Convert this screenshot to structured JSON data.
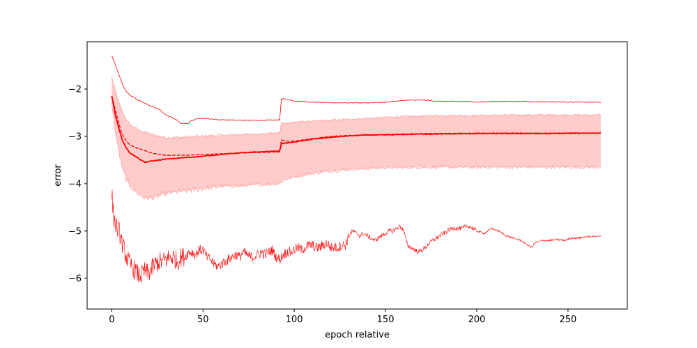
{
  "chart_data": {
    "type": "line",
    "title": "",
    "xlabel": "epoch relative",
    "ylabel": "error",
    "xlim": [
      -13.5,
      282.5
    ],
    "ylim": [
      -6.65,
      -1.0
    ],
    "xticks": [
      0,
      50,
      100,
      150,
      200,
      250
    ],
    "yticks": [
      -2,
      -3,
      -4,
      -5,
      -6
    ],
    "grid": false,
    "legend": "none",
    "colors": {
      "line": "#ff0000",
      "band_fill": "#ffcccc",
      "band_edge": "#ffaaaa"
    },
    "series": [
      {
        "role": "max",
        "style": "thin",
        "points": [
          [
            0,
            -1.3
          ],
          [
            2,
            -1.5
          ],
          [
            4,
            -1.7
          ],
          [
            6,
            -1.92
          ],
          [
            8,
            -2.05
          ],
          [
            10,
            -2.13
          ],
          [
            14,
            -2.22
          ],
          [
            18,
            -2.3
          ],
          [
            22,
            -2.37
          ],
          [
            26,
            -2.43
          ],
          [
            30,
            -2.55
          ],
          [
            34,
            -2.62
          ],
          [
            38,
            -2.72
          ],
          [
            40,
            -2.73
          ],
          [
            42,
            -2.72
          ],
          [
            44,
            -2.66
          ],
          [
            48,
            -2.62
          ],
          [
            52,
            -2.62
          ],
          [
            56,
            -2.64
          ],
          [
            60,
            -2.65
          ],
          [
            70,
            -2.66
          ],
          [
            80,
            -2.66
          ],
          [
            92,
            -2.65
          ],
          [
            93,
            -2.2
          ],
          [
            96,
            -2.22
          ],
          [
            100,
            -2.25
          ],
          [
            110,
            -2.28
          ],
          [
            120,
            -2.29
          ],
          [
            130,
            -2.29
          ],
          [
            140,
            -2.29
          ],
          [
            150,
            -2.28
          ],
          [
            160,
            -2.24
          ],
          [
            170,
            -2.23
          ],
          [
            180,
            -2.26
          ],
          [
            200,
            -2.27
          ],
          [
            220,
            -2.26
          ],
          [
            240,
            -2.27
          ],
          [
            268,
            -2.28
          ]
        ]
      },
      {
        "role": "band_upper",
        "points": [
          [
            0,
            -1.75
          ],
          [
            2,
            -2.05
          ],
          [
            4,
            -2.3
          ],
          [
            6,
            -2.5
          ],
          [
            8,
            -2.65
          ],
          [
            10,
            -2.75
          ],
          [
            14,
            -2.85
          ],
          [
            18,
            -2.92
          ],
          [
            22,
            -2.96
          ],
          [
            26,
            -3.0
          ],
          [
            30,
            -3.03
          ],
          [
            40,
            -3.02
          ],
          [
            50,
            -3.0
          ],
          [
            60,
            -2.98
          ],
          [
            70,
            -2.96
          ],
          [
            80,
            -2.95
          ],
          [
            92,
            -2.93
          ],
          [
            93,
            -2.72
          ],
          [
            96,
            -2.72
          ],
          [
            100,
            -2.7
          ],
          [
            110,
            -2.68
          ],
          [
            120,
            -2.66
          ],
          [
            130,
            -2.64
          ],
          [
            140,
            -2.62
          ],
          [
            150,
            -2.6
          ],
          [
            160,
            -2.58
          ],
          [
            170,
            -2.57
          ],
          [
            180,
            -2.56
          ],
          [
            200,
            -2.56
          ],
          [
            220,
            -2.55
          ],
          [
            240,
            -2.55
          ],
          [
            268,
            -2.55
          ]
        ]
      },
      {
        "role": "band_lower",
        "points": [
          [
            0,
            -2.3
          ],
          [
            2,
            -2.9
          ],
          [
            4,
            -3.35
          ],
          [
            6,
            -3.7
          ],
          [
            8,
            -3.9
          ],
          [
            10,
            -4.05
          ],
          [
            14,
            -4.2
          ],
          [
            18,
            -4.3
          ],
          [
            22,
            -4.3
          ],
          [
            26,
            -4.25
          ],
          [
            30,
            -4.2
          ],
          [
            40,
            -4.15
          ],
          [
            50,
            -4.1
          ],
          [
            60,
            -4.05
          ],
          [
            70,
            -4.05
          ],
          [
            80,
            -4.02
          ],
          [
            92,
            -4.0
          ],
          [
            93,
            -3.95
          ],
          [
            96,
            -3.9
          ],
          [
            100,
            -3.85
          ],
          [
            110,
            -3.78
          ],
          [
            120,
            -3.73
          ],
          [
            130,
            -3.7
          ],
          [
            140,
            -3.68
          ],
          [
            150,
            -3.66
          ],
          [
            160,
            -3.66
          ],
          [
            170,
            -3.65
          ],
          [
            180,
            -3.65
          ],
          [
            200,
            -3.65
          ],
          [
            220,
            -3.65
          ],
          [
            240,
            -3.65
          ],
          [
            268,
            -3.65
          ]
        ]
      },
      {
        "role": "median",
        "style": "dashed",
        "points": [
          [
            0,
            -2.15
          ],
          [
            2,
            -2.45
          ],
          [
            4,
            -2.75
          ],
          [
            6,
            -2.98
          ],
          [
            8,
            -3.1
          ],
          [
            10,
            -3.18
          ],
          [
            14,
            -3.25
          ],
          [
            18,
            -3.3
          ],
          [
            22,
            -3.35
          ],
          [
            26,
            -3.38
          ],
          [
            30,
            -3.4
          ],
          [
            40,
            -3.4
          ],
          [
            50,
            -3.38
          ],
          [
            60,
            -3.37
          ],
          [
            70,
            -3.35
          ],
          [
            80,
            -3.34
          ],
          [
            92,
            -3.33
          ],
          [
            93,
            -3.08
          ],
          [
            96,
            -3.1
          ],
          [
            100,
            -3.1
          ],
          [
            110,
            -3.05
          ],
          [
            120,
            -3.0
          ],
          [
            130,
            -2.98
          ],
          [
            140,
            -2.97
          ],
          [
            150,
            -2.96
          ],
          [
            160,
            -2.95
          ],
          [
            170,
            -2.94
          ],
          [
            180,
            -2.94
          ],
          [
            200,
            -2.93
          ],
          [
            220,
            -2.93
          ],
          [
            240,
            -2.93
          ],
          [
            268,
            -2.93
          ]
        ]
      },
      {
        "role": "mean",
        "style": "thick",
        "points": [
          [
            0,
            -2.15
          ],
          [
            2,
            -2.55
          ],
          [
            4,
            -2.85
          ],
          [
            6,
            -3.1
          ],
          [
            8,
            -3.25
          ],
          [
            10,
            -3.35
          ],
          [
            14,
            -3.45
          ],
          [
            18,
            -3.55
          ],
          [
            22,
            -3.52
          ],
          [
            26,
            -3.5
          ],
          [
            30,
            -3.48
          ],
          [
            40,
            -3.45
          ],
          [
            50,
            -3.42
          ],
          [
            60,
            -3.38
          ],
          [
            70,
            -3.35
          ],
          [
            80,
            -3.33
          ],
          [
            92,
            -3.31
          ],
          [
            93,
            -3.15
          ],
          [
            96,
            -3.14
          ],
          [
            100,
            -3.12
          ],
          [
            110,
            -3.06
          ],
          [
            120,
            -3.02
          ],
          [
            130,
            -2.99
          ],
          [
            140,
            -2.97
          ],
          [
            150,
            -2.97
          ],
          [
            160,
            -2.96
          ],
          [
            170,
            -2.95
          ],
          [
            180,
            -2.95
          ],
          [
            200,
            -2.94
          ],
          [
            220,
            -2.94
          ],
          [
            240,
            -2.94
          ],
          [
            268,
            -2.93
          ]
        ]
      },
      {
        "role": "min",
        "style": "noisy",
        "points": [
          [
            0,
            -4.2
          ],
          [
            1,
            -4.7
          ],
          [
            2,
            -4.85
          ],
          [
            3,
            -4.95
          ],
          [
            4,
            -5.0
          ],
          [
            5,
            -5.15
          ],
          [
            6,
            -5.3
          ],
          [
            8,
            -5.55
          ],
          [
            10,
            -5.7
          ],
          [
            12,
            -5.8
          ],
          [
            14,
            -5.9
          ],
          [
            16,
            -5.95
          ],
          [
            18,
            -5.85
          ],
          [
            20,
            -5.9
          ],
          [
            22,
            -5.8
          ],
          [
            24,
            -5.7
          ],
          [
            26,
            -5.65
          ],
          [
            28,
            -5.65
          ],
          [
            30,
            -5.6
          ],
          [
            32,
            -5.55
          ],
          [
            34,
            -5.55
          ],
          [
            36,
            -5.65
          ],
          [
            38,
            -5.55
          ],
          [
            40,
            -5.55
          ],
          [
            42,
            -5.45
          ],
          [
            44,
            -5.45
          ],
          [
            46,
            -5.5
          ],
          [
            48,
            -5.4
          ],
          [
            50,
            -5.4
          ],
          [
            52,
            -5.55
          ],
          [
            54,
            -5.6
          ],
          [
            56,
            -5.7
          ],
          [
            58,
            -5.75
          ],
          [
            60,
            -5.7
          ],
          [
            62,
            -5.65
          ],
          [
            64,
            -5.6
          ],
          [
            66,
            -5.55
          ],
          [
            68,
            -5.5
          ],
          [
            70,
            -5.55
          ],
          [
            72,
            -5.45
          ],
          [
            74,
            -5.5
          ],
          [
            76,
            -5.55
          ],
          [
            78,
            -5.55
          ],
          [
            80,
            -5.5
          ],
          [
            82,
            -5.45
          ],
          [
            84,
            -5.5
          ],
          [
            86,
            -5.45
          ],
          [
            88,
            -5.4
          ],
          [
            90,
            -5.55
          ],
          [
            92,
            -5.6
          ],
          [
            94,
            -5.5
          ],
          [
            96,
            -5.45
          ],
          [
            98,
            -5.45
          ],
          [
            100,
            -5.4
          ],
          [
            102,
            -5.35
          ],
          [
            104,
            -5.4
          ],
          [
            106,
            -5.35
          ],
          [
            108,
            -5.3
          ],
          [
            110,
            -5.3
          ],
          [
            112,
            -5.35
          ],
          [
            114,
            -5.35
          ],
          [
            116,
            -5.3
          ],
          [
            118,
            -5.25
          ],
          [
            120,
            -5.35
          ],
          [
            122,
            -5.35
          ],
          [
            124,
            -5.35
          ],
          [
            126,
            -5.3
          ],
          [
            128,
            -5.3
          ],
          [
            130,
            -5.1
          ],
          [
            132,
            -5.0
          ],
          [
            134,
            -5.05
          ],
          [
            136,
            -5.1
          ],
          [
            138,
            -5.05
          ],
          [
            140,
            -5.1
          ],
          [
            142,
            -5.15
          ],
          [
            144,
            -5.2
          ],
          [
            146,
            -5.15
          ],
          [
            148,
            -5.1
          ],
          [
            150,
            -5.05
          ],
          [
            152,
            -5.0
          ],
          [
            154,
            -5.0
          ],
          [
            156,
            -4.95
          ],
          [
            158,
            -4.9
          ],
          [
            160,
            -5.0
          ],
          [
            162,
            -5.3
          ],
          [
            164,
            -5.35
          ],
          [
            166,
            -5.4
          ],
          [
            168,
            -5.45
          ],
          [
            170,
            -5.4
          ],
          [
            172,
            -5.35
          ],
          [
            174,
            -5.25
          ],
          [
            176,
            -5.2
          ],
          [
            178,
            -5.15
          ],
          [
            180,
            -5.1
          ],
          [
            182,
            -5.05
          ],
          [
            184,
            -5.0
          ],
          [
            186,
            -4.95
          ],
          [
            188,
            -4.93
          ],
          [
            190,
            -4.95
          ],
          [
            192,
            -4.95
          ],
          [
            194,
            -4.9
          ],
          [
            196,
            -4.9
          ],
          [
            198,
            -4.95
          ],
          [
            200,
            -5.0
          ],
          [
            204,
            -5.05
          ],
          [
            208,
            -4.95
          ],
          [
            212,
            -5.0
          ],
          [
            216,
            -5.1
          ],
          [
            220,
            -5.15
          ],
          [
            224,
            -5.2
          ],
          [
            228,
            -5.3
          ],
          [
            230,
            -5.35
          ],
          [
            232,
            -5.25
          ],
          [
            236,
            -5.2
          ],
          [
            240,
            -5.2
          ],
          [
            244,
            -5.18
          ],
          [
            248,
            -5.2
          ],
          [
            252,
            -5.15
          ],
          [
            256,
            -5.15
          ],
          [
            260,
            -5.12
          ],
          [
            264,
            -5.12
          ],
          [
            268,
            -5.1
          ]
        ]
      }
    ]
  }
}
